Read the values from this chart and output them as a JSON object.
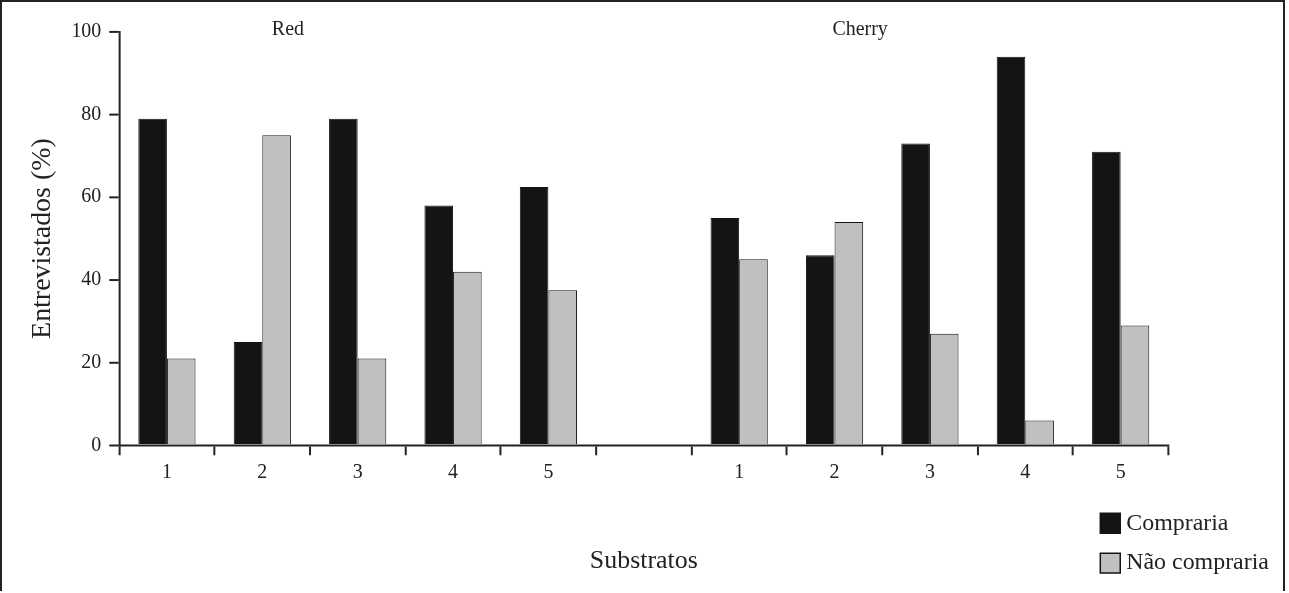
{
  "chart_data": {
    "type": "bar",
    "xlabel": "Substratos",
    "ylabel": "Entrevistados (%)",
    "categories": [
      "1",
      "2",
      "3",
      "4",
      "5",
      null,
      "1",
      "2",
      "3",
      "4",
      "5"
    ],
    "series": [
      {
        "name": "Compraria",
        "color": "#141414",
        "values": [
          79,
          25,
          79,
          58,
          62.5,
          null,
          55,
          46,
          73,
          94,
          71
        ]
      },
      {
        "name": "Não compraria",
        "color": "#c0c0c0",
        "values": [
          21,
          75,
          21,
          42,
          37.5,
          null,
          45,
          54,
          27,
          6,
          29
        ]
      }
    ],
    "annotations": [
      "Red",
      "Cherry"
    ],
    "ylim": [
      0,
      100
    ],
    "yticks": [
      0,
      20,
      40,
      60,
      80,
      100
    ],
    "grid": false,
    "legend": "bottom right"
  }
}
